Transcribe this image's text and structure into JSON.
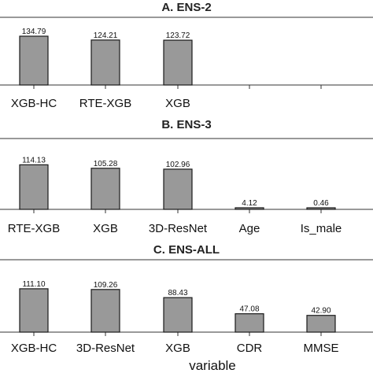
{
  "chart_data": [
    {
      "type": "bar",
      "title": "A. ENS-2",
      "categories": [
        "XGB-HC",
        "RTE-XGB",
        "XGB",
        "",
        ""
      ],
      "values": [
        134.79,
        124.21,
        123.72,
        null,
        null
      ],
      "value_labels": [
        "134.79",
        "124.21",
        "123.72",
        "",
        ""
      ],
      "ylim": [
        0,
        150
      ],
      "grid": false
    },
    {
      "type": "bar",
      "title": "B. ENS-3",
      "categories": [
        "RTE-XGB",
        "XGB",
        "3D-ResNet",
        "Age",
        "Is_male"
      ],
      "values": [
        114.13,
        105.28,
        102.96,
        4.12,
        0.46
      ],
      "value_labels": [
        "114.13",
        "105.28",
        "102.96",
        "4.12",
        "0.46"
      ],
      "ylim": [
        0,
        125
      ],
      "grid": false
    },
    {
      "type": "bar",
      "title": "C. ENS-ALL",
      "categories": [
        "XGB-HC",
        "3D-ResNet",
        "XGB",
        "CDR",
        "MMSE"
      ],
      "values": [
        111.1,
        109.26,
        88.43,
        47.08,
        42.9
      ],
      "value_labels": [
        "111.10",
        "109.26",
        "88.43",
        "47.08",
        "42.90"
      ],
      "xlabel": "variable",
      "ylim": [
        0,
        125
      ],
      "grid": false
    }
  ],
  "colors": {
    "bar_fill": "#999999",
    "bar_stroke": "#1a1a1a",
    "axis": "#333333"
  }
}
